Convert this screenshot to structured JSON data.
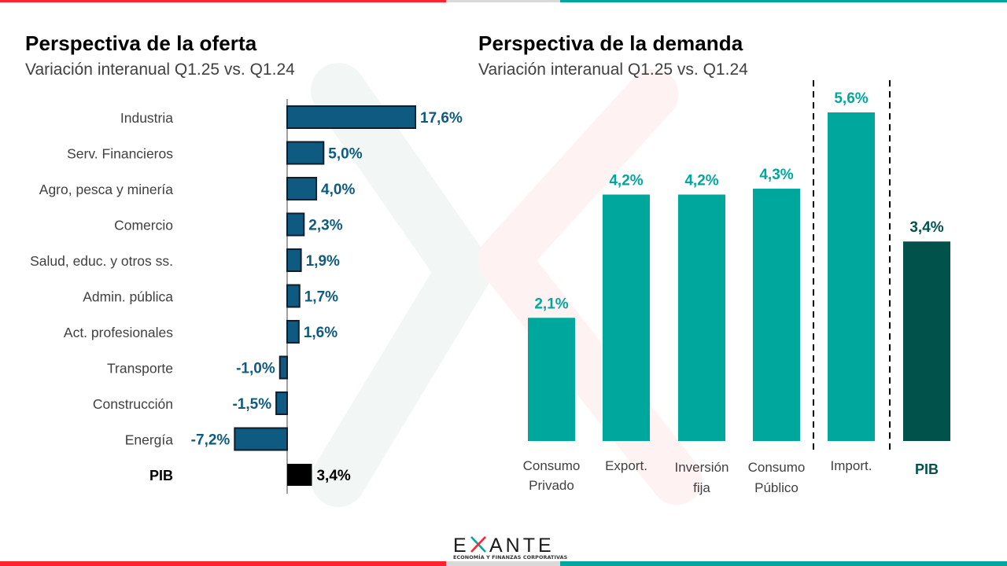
{
  "colors": {
    "red": "#ff2330",
    "gray": "#d9d9d9",
    "teal": "#00a79d",
    "supply_bar": "#0e5a80",
    "supply_bar_outline": "#0d1f2d",
    "supply_label": "#0e5a80",
    "supply_pib": "#000000",
    "demand_bar": "#00a79d",
    "demand_pib": "#02524c",
    "category_text": "#404040"
  },
  "left_panel": {
    "title": "Perspectiva de la oferta",
    "subtitle": "Variación interanual Q1.25 vs. Q1.24"
  },
  "right_panel": {
    "title": "Perspectiva de la demanda",
    "subtitle": "Variación interanual Q1.25 vs. Q1.24"
  },
  "logo": {
    "wordmark_left": "E",
    "wordmark_right": "ANTE",
    "tagline": "ECONOMÍA Y FINANZAS CORPORATIVAS"
  },
  "chart_data": [
    {
      "type": "bar",
      "orientation": "horizontal",
      "title": "Perspectiva de la oferta",
      "subtitle": "Variación interanual Q1.25 vs. Q1.24",
      "xlabel": "",
      "ylabel": "",
      "unit": "%",
      "grid": false,
      "legend": "none",
      "xlim": [
        -7.2,
        17.6
      ],
      "categories": [
        "Industria",
        "Serv. Financieros",
        "Agro, pesca y minería",
        "Comercio",
        "Salud, educ. y otros ss.",
        "Admin. pública",
        "Act. profesionales",
        "Transporte",
        "Construcción",
        "Energía",
        "PIB"
      ],
      "values": [
        17.6,
        5.0,
        4.0,
        2.3,
        1.9,
        1.7,
        1.6,
        -1.0,
        -1.5,
        -7.2,
        3.4
      ],
      "labels": [
        "17,6%",
        "5,0%",
        "4,0%",
        "2,3%",
        "1,9%",
        "1,7%",
        "1,6%",
        "-1,0%",
        "-1,5%",
        "-7,2%",
        "3,4%"
      ],
      "highlight": [
        "PIB"
      ]
    },
    {
      "type": "bar",
      "orientation": "vertical",
      "title": "Perspectiva de la demanda",
      "subtitle": "Variación interanual Q1.25 vs. Q1.24",
      "xlabel": "",
      "ylabel": "",
      "unit": "%",
      "grid": false,
      "legend": "none",
      "ylim": [
        0,
        5.6
      ],
      "categories": [
        [
          "Consumo",
          "Privado"
        ],
        [
          "Export."
        ],
        [
          "Inversión",
          "fija"
        ],
        [
          "Consumo",
          "Público"
        ],
        [
          "Import."
        ],
        [
          "PIB"
        ]
      ],
      "values": [
        2.1,
        4.2,
        4.2,
        4.3,
        5.6,
        3.4
      ],
      "labels": [
        "2,1%",
        "4,2%",
        "4,2%",
        "4,3%",
        "5,6%",
        "3,4%"
      ],
      "highlight": [
        "PIB"
      ],
      "separators_after": [
        "Consumo Público",
        "Import."
      ]
    }
  ]
}
